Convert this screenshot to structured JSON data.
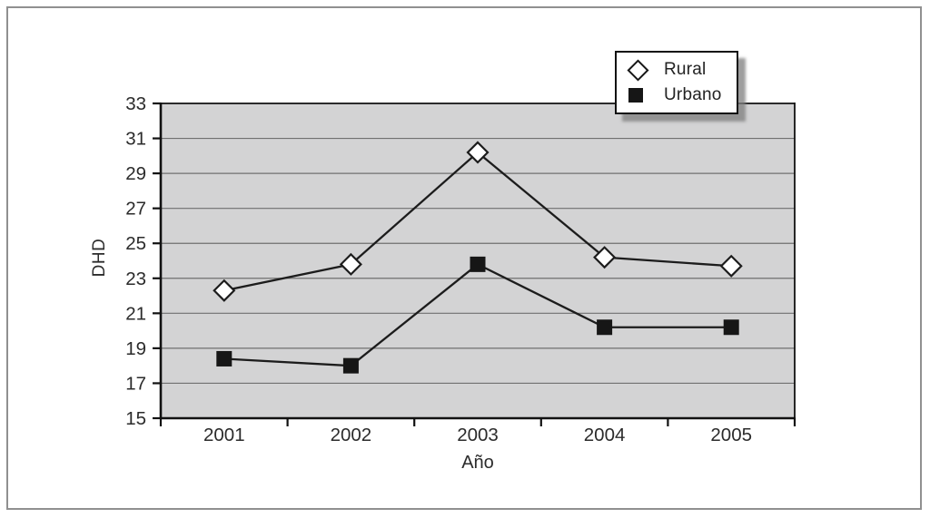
{
  "figure": {
    "background": "#ffffff",
    "border_color": "#909090"
  },
  "chart_data": {
    "type": "line",
    "title": "",
    "xlabel": "Año",
    "ylabel": "DHD",
    "categories": [
      "2001",
      "2002",
      "2003",
      "2004",
      "2005"
    ],
    "series": [
      {
        "name": "Rural",
        "marker": "diamond",
        "marker_fill": "#ffffff",
        "values": [
          22.3,
          23.8,
          30.2,
          24.2,
          23.7
        ]
      },
      {
        "name": "Urbano",
        "marker": "square",
        "marker_fill": "#161616",
        "values": [
          18.4,
          18.0,
          23.8,
          20.2,
          20.2
        ]
      }
    ],
    "ylim": [
      15,
      33
    ],
    "yticks": [
      15,
      17,
      19,
      21,
      23,
      25,
      27,
      29,
      31,
      33
    ],
    "grid": "horizontal-only",
    "legend_position": "top-right",
    "colors": {
      "plot_background": "#d3d3d4",
      "gridline": "#707070",
      "line": "#1c1c1c",
      "axis": "#111111",
      "tick_text": "#2b2b2b"
    }
  }
}
